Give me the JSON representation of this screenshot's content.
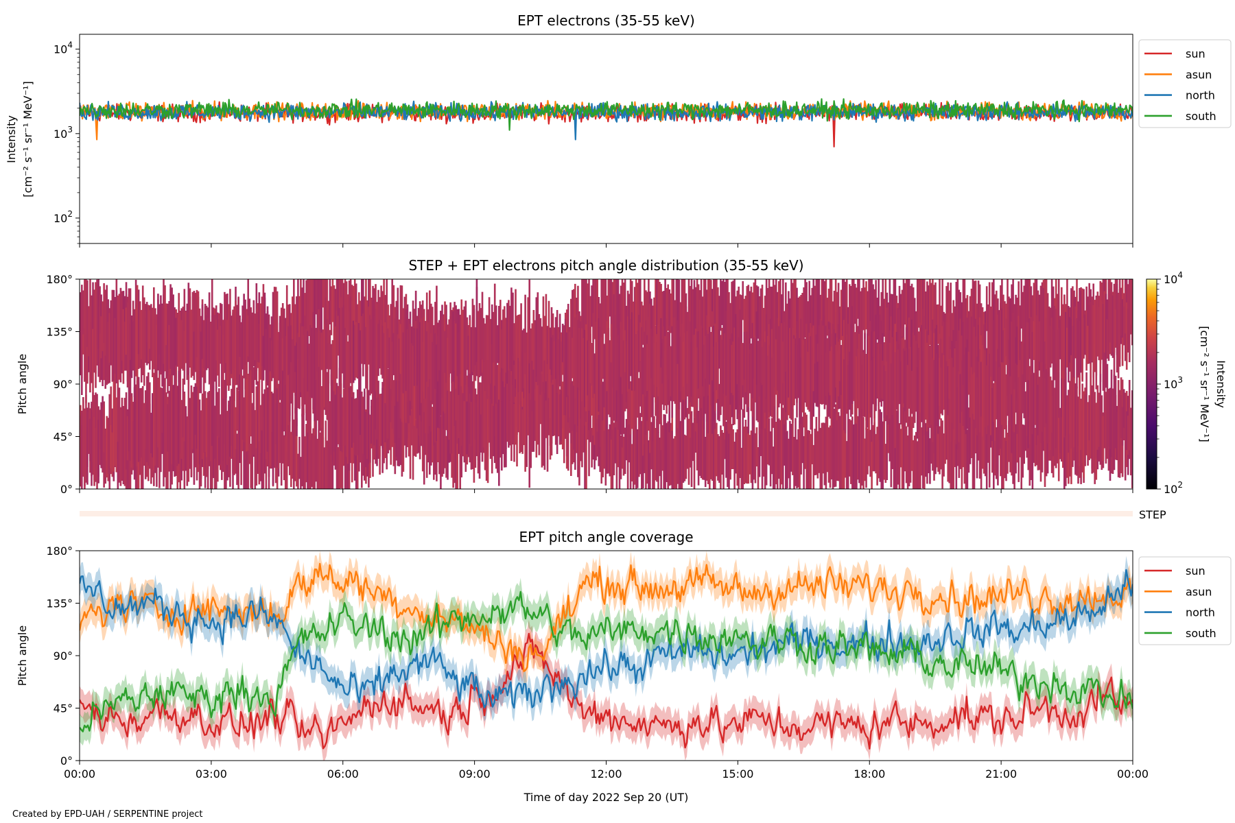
{
  "chart_data": [
    {
      "type": "line",
      "title": "EPT electrons (35-55 keV)",
      "ylabel": "Intensity",
      "ylabel_units": "[cm⁻² s⁻¹ sr⁻¹ MeV⁻¹]",
      "yscale": "log",
      "ylim": [
        50,
        15000
      ],
      "yticks": [
        "10²",
        "10³",
        "10⁴"
      ],
      "xlim": [
        0,
        24
      ],
      "legend_position": "outside-right-top",
      "grid": false,
      "series": [
        {
          "name": "sun",
          "color": "#d62728",
          "mean": 1750,
          "x": [
            0,
            24
          ],
          "y": [
            1750,
            1750
          ],
          "annotation_min": {
            "x": 17.2,
            "y": 700
          }
        },
        {
          "name": "asun",
          "color": "#ff7f0e",
          "mean": 1850,
          "x": [
            0,
            24
          ],
          "y": [
            1850,
            1850
          ],
          "annotation_min": {
            "x": 0.4,
            "y": 850
          }
        },
        {
          "name": "north",
          "color": "#1f77b4",
          "mean": 1800,
          "x": [
            0,
            24
          ],
          "y": [
            1800,
            1800
          ],
          "annotation_min": {
            "x": 11.3,
            "y": 850
          }
        },
        {
          "name": "south",
          "color": "#2ca02c",
          "mean": 1900,
          "x": [
            0,
            24
          ],
          "y": [
            1900,
            1900
          ],
          "annotation_min": {
            "x": 9.8,
            "y": 1100
          }
        }
      ]
    },
    {
      "type": "heatmap",
      "title": "STEP + EPT electrons pitch angle distribution (35-55 keV)",
      "ylabel": "Pitch angle",
      "ylim": [
        0,
        180
      ],
      "yticks": [
        "0°",
        "45°",
        "90°",
        "135°",
        "180°"
      ],
      "xlim": [
        0,
        24
      ],
      "colorbar": {
        "label": "Intensity",
        "label_units": "[cm⁻² s⁻¹ sr⁻¹ MeV⁻¹]",
        "scale": "log",
        "range": [
          100,
          10000
        ],
        "ticks": [
          "10²",
          "10³",
          "10⁴"
        ],
        "colormap": "inferno"
      },
      "typical_intensity": 1800,
      "step_strip_label": "STEP"
    },
    {
      "type": "line",
      "title": "EPT pitch angle coverage",
      "ylabel": "Pitch angle",
      "ylim": [
        0,
        180
      ],
      "yticks": [
        "0°",
        "45°",
        "90°",
        "135°",
        "180°"
      ],
      "xlim": [
        0,
        24
      ],
      "xticks": [
        "00:00",
        "03:00",
        "06:00",
        "09:00",
        "12:00",
        "15:00",
        "18:00",
        "21:00",
        "00:00"
      ],
      "xlabel": "Time of day 2022 Sep 20 (UT)",
      "legend_position": "outside-right-top",
      "shaded_band": true,
      "series": [
        {
          "name": "sun",
          "color": "#d62728",
          "x": [
            0,
            0.5,
            1,
            1.5,
            2,
            2.5,
            3,
            3.5,
            4,
            4.5,
            5,
            5.5,
            6,
            6.5,
            7,
            7.5,
            8,
            8.5,
            9,
            9.5,
            10,
            10.5,
            11,
            11.5,
            12,
            12.5,
            13,
            13.5,
            14,
            14.5,
            15,
            15.5,
            16,
            16.5,
            17,
            17.5,
            18,
            18.5,
            19,
            19.5,
            20,
            20.5,
            21,
            21.5,
            22,
            22.5,
            23,
            23.5,
            24
          ],
          "y": [
            45,
            40,
            35,
            38,
            42,
            40,
            35,
            30,
            32,
            40,
            25,
            20,
            30,
            45,
            55,
            50,
            45,
            40,
            55,
            65,
            85,
            90,
            65,
            40,
            40,
            35,
            30,
            30,
            35,
            30,
            30,
            35,
            30,
            30,
            30,
            30,
            30,
            35,
            30,
            35,
            40,
            35,
            35,
            40,
            45,
            40,
            50,
            55,
            40
          ]
        },
        {
          "name": "asun",
          "color": "#ff7f0e",
          "x": [
            0,
            0.5,
            1,
            1.5,
            2,
            2.5,
            3,
            3.5,
            4,
            4.5,
            5,
            5.5,
            6,
            6.5,
            7,
            7.5,
            8,
            8.5,
            9,
            9.5,
            10,
            10.5,
            11,
            11.5,
            12,
            12.5,
            13,
            13.5,
            14,
            14.5,
            15,
            15.5,
            16,
            16.5,
            17,
            17.5,
            18,
            18.5,
            19,
            19.5,
            20,
            20.5,
            21,
            21.5,
            22,
            22.5,
            23,
            23.5,
            24
          ],
          "y": [
            120,
            130,
            135,
            130,
            128,
            132,
            130,
            128,
            130,
            125,
            150,
            160,
            155,
            150,
            140,
            135,
            125,
            120,
            115,
            100,
            95,
            90,
            120,
            150,
            155,
            150,
            148,
            150,
            150,
            150,
            145,
            145,
            150,
            148,
            150,
            148,
            150,
            145,
            150,
            145,
            140,
            140,
            140,
            145,
            140,
            140,
            140,
            145,
            140
          ]
        },
        {
          "name": "north",
          "color": "#1f77b4",
          "x": [
            0,
            0.5,
            1,
            1.5,
            2,
            2.5,
            3,
            3.5,
            4,
            4.5,
            5,
            5.5,
            6,
            6.5,
            7,
            7.5,
            8,
            8.5,
            9,
            9.5,
            10,
            10.5,
            11,
            11.5,
            12,
            12.5,
            13,
            13.5,
            14,
            14.5,
            15,
            15.5,
            16,
            16.5,
            17,
            17.5,
            18,
            18.5,
            19,
            19.5,
            20,
            20.5,
            21,
            21.5,
            22,
            22.5,
            23,
            23.5,
            24
          ],
          "y": [
            150,
            140,
            130,
            135,
            130,
            125,
            120,
            122,
            125,
            120,
            90,
            80,
            60,
            55,
            70,
            80,
            85,
            70,
            60,
            50,
            55,
            60,
            70,
            75,
            80,
            80,
            85,
            90,
            95,
            90,
            90,
            95,
            100,
            100,
            105,
            100,
            100,
            105,
            100,
            105,
            110,
            110,
            115,
            110,
            120,
            120,
            125,
            140,
            150
          ]
        },
        {
          "name": "south",
          "color": "#2ca02c",
          "x": [
            0,
            0.5,
            1,
            1.5,
            2,
            2.5,
            3,
            3.5,
            4,
            4.5,
            5,
            5.5,
            6,
            6.5,
            7,
            7.5,
            8,
            8.5,
            9,
            9.5,
            10,
            10.5,
            11,
            11.5,
            12,
            12.5,
            13,
            13.5,
            14,
            14.5,
            15,
            15.5,
            16,
            16.5,
            17,
            17.5,
            18,
            18.5,
            19,
            19.5,
            20,
            20.5,
            21,
            21.5,
            22,
            22.5,
            23,
            23.5,
            24
          ],
          "y": [
            35,
            40,
            50,
            55,
            60,
            55,
            55,
            60,
            60,
            55,
            100,
            110,
            120,
            115,
            110,
            105,
            110,
            120,
            125,
            130,
            130,
            125,
            110,
            105,
            110,
            110,
            115,
            110,
            110,
            105,
            110,
            100,
            105,
            100,
            100,
            95,
            95,
            90,
            90,
            85,
            80,
            80,
            75,
            70,
            70,
            65,
            60,
            55,
            50
          ]
        }
      ]
    }
  ],
  "footer": "Created by EPD-UAH / SERPENTINE project"
}
